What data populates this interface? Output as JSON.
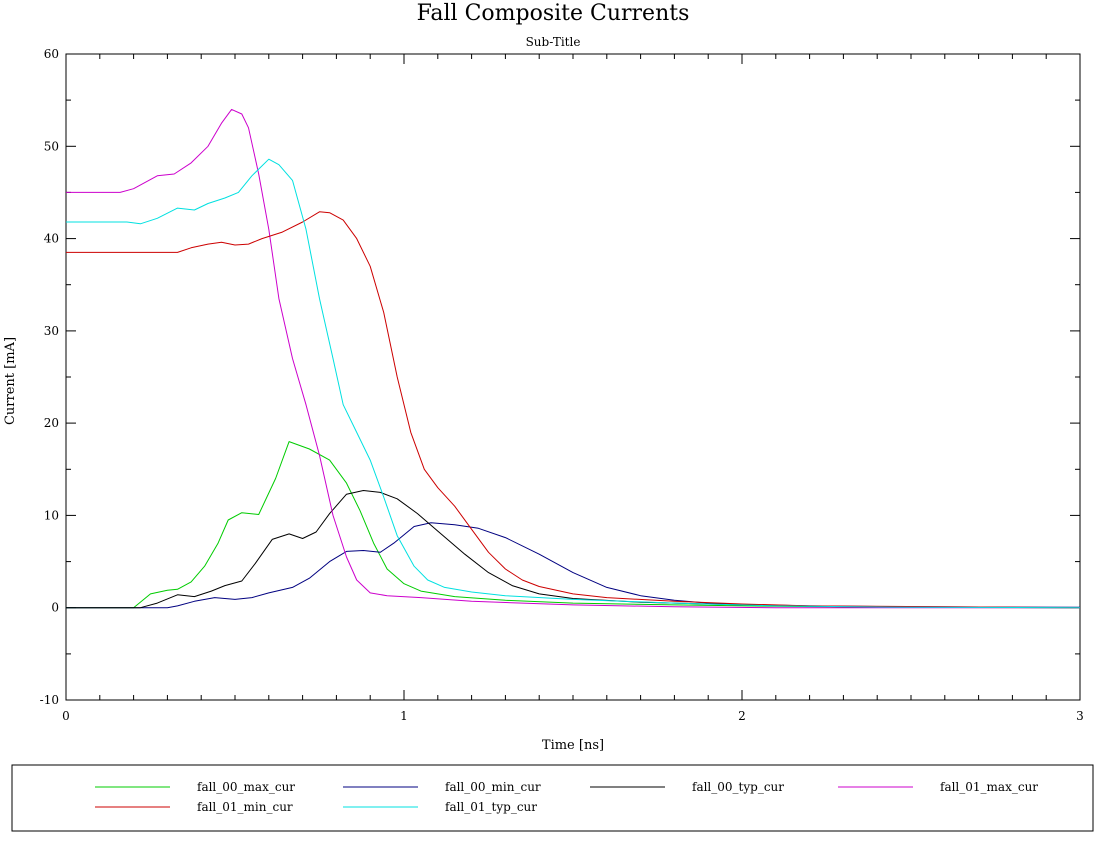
{
  "chart_data": {
    "type": "line",
    "title": "Fall Composite Currents",
    "subtitle": "Sub-Title",
    "xlabel": "Time [ns]",
    "ylabel": "Current [mA]",
    "xlim": [
      0,
      3
    ],
    "ylim": [
      -10,
      60
    ],
    "x_ticks": [
      "0",
      "1",
      "2",
      "3"
    ],
    "y_ticks": [
      "-10",
      "0",
      "10",
      "20",
      "30",
      "40",
      "50",
      "60"
    ],
    "grid": false,
    "legend_position": "bottom",
    "series": [
      {
        "name": "fall_00_max_cur",
        "color": "#00cc00",
        "points": [
          [
            0,
            0
          ],
          [
            0.2,
            0
          ],
          [
            0.25,
            1.5
          ],
          [
            0.3,
            1.9
          ],
          [
            0.33,
            2
          ],
          [
            0.37,
            2.8
          ],
          [
            0.41,
            4.5
          ],
          [
            0.45,
            7
          ],
          [
            0.48,
            9.5
          ],
          [
            0.52,
            10.3
          ],
          [
            0.57,
            10.1
          ],
          [
            0.62,
            14
          ],
          [
            0.66,
            18
          ],
          [
            0.72,
            17.2
          ],
          [
            0.78,
            16
          ],
          [
            0.83,
            13.5
          ],
          [
            0.87,
            10.5
          ],
          [
            0.91,
            7
          ],
          [
            0.95,
            4.2
          ],
          [
            1.0,
            2.6
          ],
          [
            1.05,
            1.8
          ],
          [
            1.15,
            1.2
          ],
          [
            1.3,
            0.8
          ],
          [
            1.5,
            0.5
          ],
          [
            1.8,
            0.3
          ],
          [
            2.1,
            0.15
          ],
          [
            2.4,
            0.05
          ],
          [
            3.0,
            0
          ]
        ]
      },
      {
        "name": "fall_00_min_cur",
        "color": "#000080",
        "points": [
          [
            0,
            0
          ],
          [
            0.3,
            0
          ],
          [
            0.33,
            0.2
          ],
          [
            0.38,
            0.7
          ],
          [
            0.44,
            1.1
          ],
          [
            0.5,
            0.9
          ],
          [
            0.55,
            1.1
          ],
          [
            0.6,
            1.6
          ],
          [
            0.67,
            2.2
          ],
          [
            0.72,
            3.2
          ],
          [
            0.78,
            5
          ],
          [
            0.83,
            6.1
          ],
          [
            0.88,
            6.2
          ],
          [
            0.93,
            6
          ],
          [
            0.97,
            7
          ],
          [
            1.03,
            8.8
          ],
          [
            1.08,
            9.2
          ],
          [
            1.15,
            9
          ],
          [
            1.22,
            8.6
          ],
          [
            1.3,
            7.6
          ],
          [
            1.4,
            5.8
          ],
          [
            1.5,
            3.8
          ],
          [
            1.6,
            2.2
          ],
          [
            1.7,
            1.3
          ],
          [
            1.8,
            0.8
          ],
          [
            1.9,
            0.5
          ],
          [
            2.0,
            0.35
          ],
          [
            2.2,
            0.2
          ],
          [
            2.5,
            0.1
          ],
          [
            3.0,
            0.05
          ]
        ]
      },
      {
        "name": "fall_00_typ_cur",
        "color": "#000000",
        "points": [
          [
            0,
            0
          ],
          [
            0.22,
            0
          ],
          [
            0.27,
            0.5
          ],
          [
            0.33,
            1.4
          ],
          [
            0.38,
            1.2
          ],
          [
            0.43,
            1.8
          ],
          [
            0.47,
            2.4
          ],
          [
            0.52,
            2.9
          ],
          [
            0.56,
            4.8
          ],
          [
            0.61,
            7.4
          ],
          [
            0.66,
            8
          ],
          [
            0.7,
            7.5
          ],
          [
            0.74,
            8.2
          ],
          [
            0.78,
            10.2
          ],
          [
            0.83,
            12.3
          ],
          [
            0.88,
            12.7
          ],
          [
            0.93,
            12.5
          ],
          [
            0.98,
            11.8
          ],
          [
            1.04,
            10.2
          ],
          [
            1.1,
            8.3
          ],
          [
            1.18,
            5.8
          ],
          [
            1.25,
            3.8
          ],
          [
            1.32,
            2.4
          ],
          [
            1.4,
            1.5
          ],
          [
            1.5,
            1.0
          ],
          [
            1.7,
            0.6
          ],
          [
            2.0,
            0.3
          ],
          [
            2.3,
            0.1
          ],
          [
            3.0,
            0
          ]
        ]
      },
      {
        "name": "fall_01_max_cur",
        "color": "#cc00cc",
        "points": [
          [
            0,
            45
          ],
          [
            0.16,
            45
          ],
          [
            0.2,
            45.4
          ],
          [
            0.27,
            46.8
          ],
          [
            0.32,
            47
          ],
          [
            0.37,
            48.2
          ],
          [
            0.42,
            50
          ],
          [
            0.46,
            52.5
          ],
          [
            0.49,
            54
          ],
          [
            0.52,
            53.5
          ],
          [
            0.54,
            52
          ],
          [
            0.57,
            47
          ],
          [
            0.6,
            41
          ],
          [
            0.63,
            33.5
          ],
          [
            0.67,
            27
          ],
          [
            0.71,
            22
          ],
          [
            0.75,
            16.5
          ],
          [
            0.79,
            10
          ],
          [
            0.83,
            5.5
          ],
          [
            0.86,
            3
          ],
          [
            0.9,
            1.6
          ],
          [
            0.95,
            1.3
          ],
          [
            1.05,
            1.1
          ],
          [
            1.2,
            0.7
          ],
          [
            1.5,
            0.3
          ],
          [
            1.8,
            0.1
          ],
          [
            2.1,
            0
          ],
          [
            3.0,
            0
          ]
        ]
      },
      {
        "name": "fall_01_min_cur",
        "color": "#cc0000",
        "points": [
          [
            0,
            38.5
          ],
          [
            0.33,
            38.5
          ],
          [
            0.37,
            39
          ],
          [
            0.42,
            39.4
          ],
          [
            0.46,
            39.6
          ],
          [
            0.5,
            39.3
          ],
          [
            0.54,
            39.4
          ],
          [
            0.58,
            40
          ],
          [
            0.64,
            40.7
          ],
          [
            0.7,
            41.8
          ],
          [
            0.75,
            42.9
          ],
          [
            0.78,
            42.8
          ],
          [
            0.82,
            42
          ],
          [
            0.86,
            40
          ],
          [
            0.9,
            37
          ],
          [
            0.94,
            32
          ],
          [
            0.98,
            25
          ],
          [
            1.02,
            19
          ],
          [
            1.06,
            15
          ],
          [
            1.1,
            13
          ],
          [
            1.15,
            11
          ],
          [
            1.2,
            8.5
          ],
          [
            1.25,
            6
          ],
          [
            1.3,
            4.2
          ],
          [
            1.35,
            3
          ],
          [
            1.4,
            2.3
          ],
          [
            1.5,
            1.5
          ],
          [
            1.6,
            1.1
          ],
          [
            1.8,
            0.7
          ],
          [
            2.0,
            0.4
          ],
          [
            2.2,
            0.2
          ],
          [
            3.0,
            0
          ]
        ]
      },
      {
        "name": "fall_01_typ_cur",
        "color": "#00e0e0",
        "points": [
          [
            0,
            41.8
          ],
          [
            0.18,
            41.8
          ],
          [
            0.22,
            41.6
          ],
          [
            0.27,
            42.2
          ],
          [
            0.33,
            43.3
          ],
          [
            0.38,
            43.1
          ],
          [
            0.42,
            43.8
          ],
          [
            0.47,
            44.4
          ],
          [
            0.51,
            45
          ],
          [
            0.55,
            46.8
          ],
          [
            0.6,
            48.6
          ],
          [
            0.63,
            48
          ],
          [
            0.67,
            46.3
          ],
          [
            0.71,
            41
          ],
          [
            0.75,
            33.5
          ],
          [
            0.79,
            27
          ],
          [
            0.82,
            22
          ],
          [
            0.86,
            19
          ],
          [
            0.9,
            16
          ],
          [
            0.94,
            12
          ],
          [
            0.98,
            7.8
          ],
          [
            1.03,
            4.5
          ],
          [
            1.07,
            3
          ],
          [
            1.12,
            2.2
          ],
          [
            1.2,
            1.7
          ],
          [
            1.3,
            1.3
          ],
          [
            1.5,
            0.9
          ],
          [
            1.8,
            0.5
          ],
          [
            2.1,
            0.2
          ],
          [
            2.5,
            0.05
          ],
          [
            3.0,
            0
          ]
        ]
      }
    ]
  }
}
